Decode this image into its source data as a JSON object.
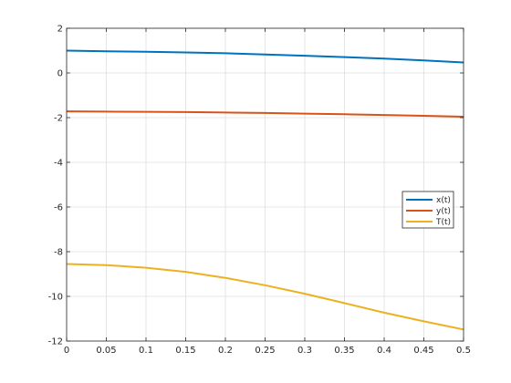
{
  "chart_data": {
    "type": "line",
    "title": "",
    "xlabel": "",
    "ylabel": "",
    "xlim": [
      0,
      0.5
    ],
    "ylim": [
      -12,
      2
    ],
    "grid": true,
    "legend_position": "right",
    "xticks": [
      "0",
      "0.05",
      "0.1",
      "0.15",
      "0.2",
      "0.25",
      "0.3",
      "0.35",
      "0.4",
      "0.45",
      "0.5"
    ],
    "yticks": [
      "2",
      "0",
      "-2",
      "-4",
      "-6",
      "-8",
      "-10",
      "-12"
    ],
    "x": [
      0,
      0.05,
      0.1,
      0.15,
      0.2,
      0.25,
      0.3,
      0.35,
      0.4,
      0.45,
      0.5
    ],
    "series": [
      {
        "name": "x(t)",
        "color": "#0072BD",
        "values": [
          1.0,
          0.97,
          0.95,
          0.92,
          0.88,
          0.83,
          0.77,
          0.71,
          0.64,
          0.56,
          0.47
        ]
      },
      {
        "name": "y(t)",
        "color": "#D95319",
        "values": [
          -1.72,
          -1.73,
          -1.74,
          -1.75,
          -1.77,
          -1.79,
          -1.82,
          -1.85,
          -1.88,
          -1.92,
          -1.96
        ]
      },
      {
        "name": "T(t)",
        "color": "#EDB120",
        "values": [
          -8.55,
          -8.6,
          -8.72,
          -8.9,
          -9.17,
          -9.5,
          -9.88,
          -10.3,
          -10.73,
          -11.12,
          -11.48
        ]
      }
    ]
  }
}
